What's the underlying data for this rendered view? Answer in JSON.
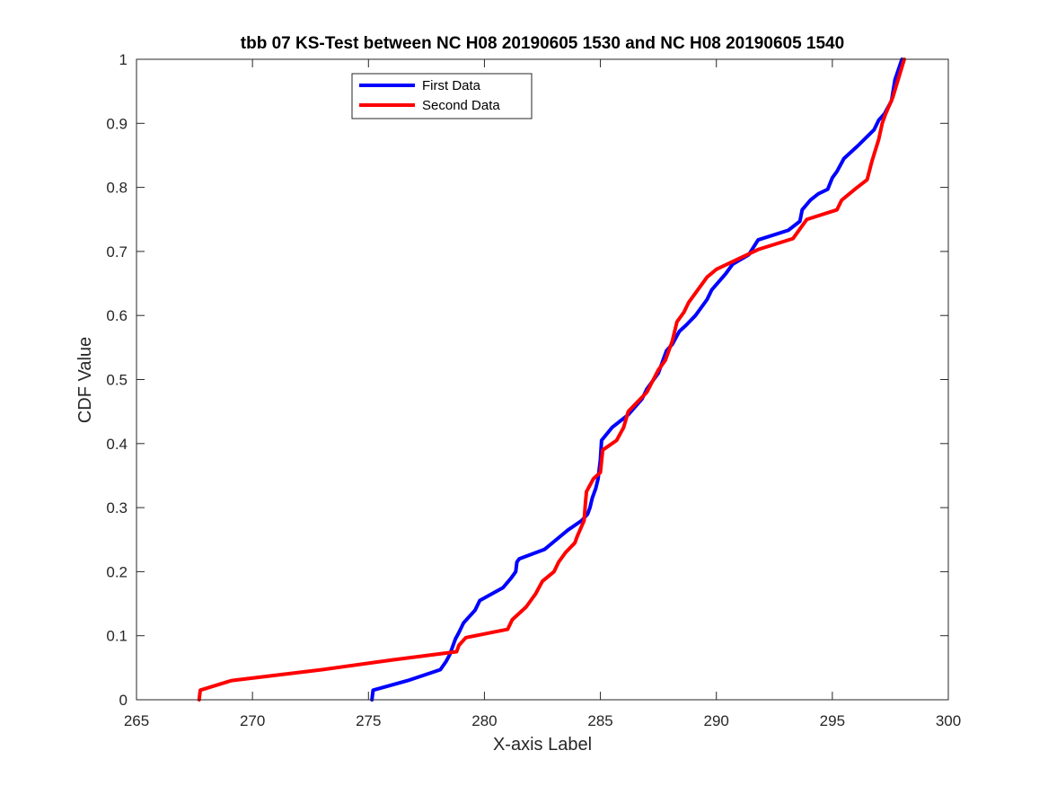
{
  "chart_data": {
    "type": "line",
    "title": "tbb 07 KS-Test between NC H08 20190605 1530 and NC H08 20190605 1540",
    "xlabel": "X-axis Label",
    "ylabel": "CDF Value",
    "xlim": [
      265,
      300
    ],
    "ylim": [
      0,
      1
    ],
    "xticks": [
      "265",
      "270",
      "275",
      "280",
      "285",
      "290",
      "295",
      "300"
    ],
    "yticks": [
      "0",
      "0.1",
      "0.2",
      "0.3",
      "0.4",
      "0.5",
      "0.6",
      "0.7",
      "0.8",
      "0.9",
      "1"
    ],
    "grid": false,
    "legend_position": "top-left",
    "series": [
      {
        "name": "First Data",
        "color": "#0000ff",
        "x": [
          275.15,
          275.2,
          276.7,
          278.1,
          278.35,
          278.5,
          278.65,
          278.75,
          278.9,
          279.1,
          279.35,
          279.6,
          279.8,
          280.3,
          280.8,
          281.15,
          281.35,
          281.4,
          281.5,
          282.6,
          283.1,
          283.6,
          284.2,
          284.45,
          284.55,
          284.65,
          284.8,
          284.9,
          285.0,
          285.05,
          285.5,
          286.2,
          286.8,
          287.0,
          287.3,
          287.5,
          287.7,
          287.85,
          288.1,
          288.4,
          288.7,
          289.1,
          289.6,
          289.8,
          290.4,
          290.7,
          291.4,
          291.8,
          293.1,
          293.6,
          293.7,
          294.05,
          294.4,
          294.8,
          295.0,
          295.2,
          295.5,
          296.1,
          296.8,
          297.0,
          297.25,
          297.55,
          297.7,
          298.0
        ],
        "y": [
          0.0,
          0.015,
          0.03,
          0.047,
          0.06,
          0.07,
          0.085,
          0.095,
          0.105,
          0.12,
          0.13,
          0.14,
          0.155,
          0.165,
          0.175,
          0.19,
          0.2,
          0.215,
          0.22,
          0.235,
          0.25,
          0.265,
          0.28,
          0.29,
          0.3,
          0.315,
          0.33,
          0.345,
          0.375,
          0.405,
          0.425,
          0.445,
          0.47,
          0.485,
          0.5,
          0.51,
          0.53,
          0.545,
          0.555,
          0.575,
          0.585,
          0.6,
          0.625,
          0.64,
          0.665,
          0.68,
          0.695,
          0.718,
          0.733,
          0.747,
          0.765,
          0.78,
          0.79,
          0.797,
          0.815,
          0.825,
          0.845,
          0.865,
          0.89,
          0.905,
          0.915,
          0.935,
          0.968,
          1.0
        ]
      },
      {
        "name": "Second Data",
        "color": "#ff0000",
        "x": [
          267.7,
          267.75,
          269.1,
          273.0,
          276.0,
          278.8,
          278.9,
          279.2,
          281.0,
          281.2,
          281.5,
          281.8,
          282.0,
          282.2,
          282.5,
          283.0,
          283.2,
          283.5,
          283.9,
          284.0,
          284.3,
          284.35,
          284.4,
          284.7,
          285.0,
          285.1,
          285.7,
          286.0,
          286.2,
          287.0,
          287.5,
          287.8,
          288.1,
          288.3,
          288.6,
          288.8,
          289.2,
          289.6,
          290.0,
          291.8,
          293.3,
          293.9,
          295.2,
          295.4,
          296.0,
          296.5,
          296.7,
          297.0,
          297.15,
          297.3,
          297.6,
          298.1
        ],
        "y": [
          0.0,
          0.015,
          0.03,
          0.047,
          0.062,
          0.075,
          0.085,
          0.097,
          0.11,
          0.125,
          0.135,
          0.145,
          0.155,
          0.165,
          0.185,
          0.2,
          0.215,
          0.23,
          0.245,
          0.255,
          0.28,
          0.305,
          0.325,
          0.345,
          0.355,
          0.39,
          0.405,
          0.425,
          0.45,
          0.48,
          0.515,
          0.53,
          0.56,
          0.59,
          0.605,
          0.62,
          0.64,
          0.66,
          0.672,
          0.703,
          0.72,
          0.75,
          0.765,
          0.78,
          0.798,
          0.812,
          0.84,
          0.875,
          0.9,
          0.915,
          0.94,
          1.0
        ]
      }
    ]
  }
}
